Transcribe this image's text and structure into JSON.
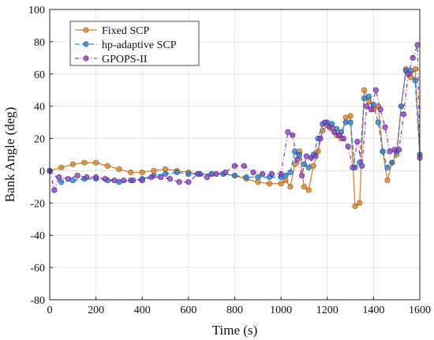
{
  "chart_data": {
    "type": "line",
    "xlabel": "Time (s)",
    "ylabel": "Bank Angle (deg)",
    "xlim": [
      0,
      1600
    ],
    "ylim": [
      -80,
      100
    ],
    "xticks": [
      0,
      200,
      400,
      600,
      800,
      1000,
      1200,
      1400,
      1600
    ],
    "yticks": [
      -80,
      -60,
      -40,
      -20,
      0,
      20,
      40,
      60,
      80,
      100
    ],
    "grid": true,
    "legend_position": "top-left",
    "series": [
      {
        "name": "Fixed SCP",
        "color": "#d9822b",
        "dash": "solid",
        "x": [
          0,
          50,
          100,
          150,
          200,
          250,
          300,
          350,
          400,
          450,
          500,
          550,
          600,
          650,
          700,
          750,
          800,
          850,
          900,
          950,
          1000,
          1020,
          1040,
          1060,
          1080,
          1100,
          1120,
          1140,
          1160,
          1180,
          1200,
          1220,
          1240,
          1260,
          1280,
          1300,
          1320,
          1340,
          1360,
          1380,
          1400,
          1420,
          1440,
          1460,
          1480,
          1500,
          1520,
          1540,
          1560,
          1580,
          1600
        ],
        "values": [
          0,
          2,
          4,
          5,
          5,
          3,
          1,
          -1,
          -1,
          0,
          1,
          0,
          -1,
          -2,
          -2,
          -2,
          -3,
          -5,
          -7,
          -8,
          -8,
          -6,
          -10,
          4,
          12,
          -10,
          -12,
          3,
          12,
          25,
          28,
          26,
          22,
          20,
          33,
          34,
          -22,
          -20,
          50,
          43,
          38,
          40,
          12,
          -6,
          5,
          10,
          40,
          63,
          58,
          63,
          10
        ]
      },
      {
        "name": "hp-adaptive SCP",
        "color": "#2e7fd0",
        "dash": "6,3",
        "x": [
          0,
          50,
          100,
          150,
          200,
          250,
          300,
          350,
          400,
          450,
          500,
          550,
          600,
          650,
          700,
          750,
          800,
          850,
          900,
          950,
          1000,
          1020,
          1040,
          1060,
          1080,
          1100,
          1120,
          1140,
          1160,
          1180,
          1200,
          1220,
          1240,
          1260,
          1280,
          1300,
          1320,
          1340,
          1360,
          1380,
          1400,
          1420,
          1440,
          1460,
          1480,
          1500,
          1520,
          1540,
          1560,
          1580,
          1600
        ],
        "values": [
          0,
          -7,
          -6,
          -5,
          -5,
          -6,
          -7,
          -6,
          -5,
          -3,
          -2,
          -1,
          -2,
          -2,
          -2,
          -2,
          -3,
          -4,
          -4,
          -4,
          -4,
          -3,
          -1,
          12,
          10,
          4,
          2,
          10,
          20,
          29,
          30,
          29,
          26,
          24,
          30,
          30,
          2,
          5,
          45,
          46,
          41,
          30,
          12,
          2,
          5,
          12,
          40,
          62,
          62,
          56,
          10
        ]
      },
      {
        "name": "GPOPS-II",
        "color": "#8a3fc4",
        "dash": "5,3,1,3",
        "x": [
          0,
          20,
          40,
          80,
          120,
          160,
          200,
          240,
          280,
          320,
          360,
          400,
          440,
          480,
          520,
          560,
          600,
          640,
          680,
          720,
          760,
          800,
          840,
          880,
          920,
          960,
          1000,
          1030,
          1050,
          1070,
          1090,
          1110,
          1130,
          1150,
          1170,
          1190,
          1210,
          1230,
          1250,
          1270,
          1290,
          1310,
          1330,
          1350,
          1370,
          1390,
          1410,
          1430,
          1450,
          1470,
          1490,
          1510,
          1530,
          1550,
          1570,
          1590,
          1600
        ],
        "values": [
          0,
          -12,
          -4,
          -5,
          -3,
          -4,
          -4,
          -5,
          -6,
          -6,
          -6,
          -6,
          -4,
          -4,
          -5,
          -7,
          -7,
          -2,
          -4,
          -2,
          -1,
          3,
          3,
          -1,
          -2,
          -2,
          -2,
          24,
          22,
          7,
          -3,
          9,
          8,
          9,
          20,
          30,
          27,
          24,
          22,
          20,
          15,
          2,
          18,
          3,
          40,
          38,
          50,
          38,
          27,
          12,
          13,
          13,
          35,
          60,
          70,
          78,
          8
        ]
      }
    ]
  }
}
